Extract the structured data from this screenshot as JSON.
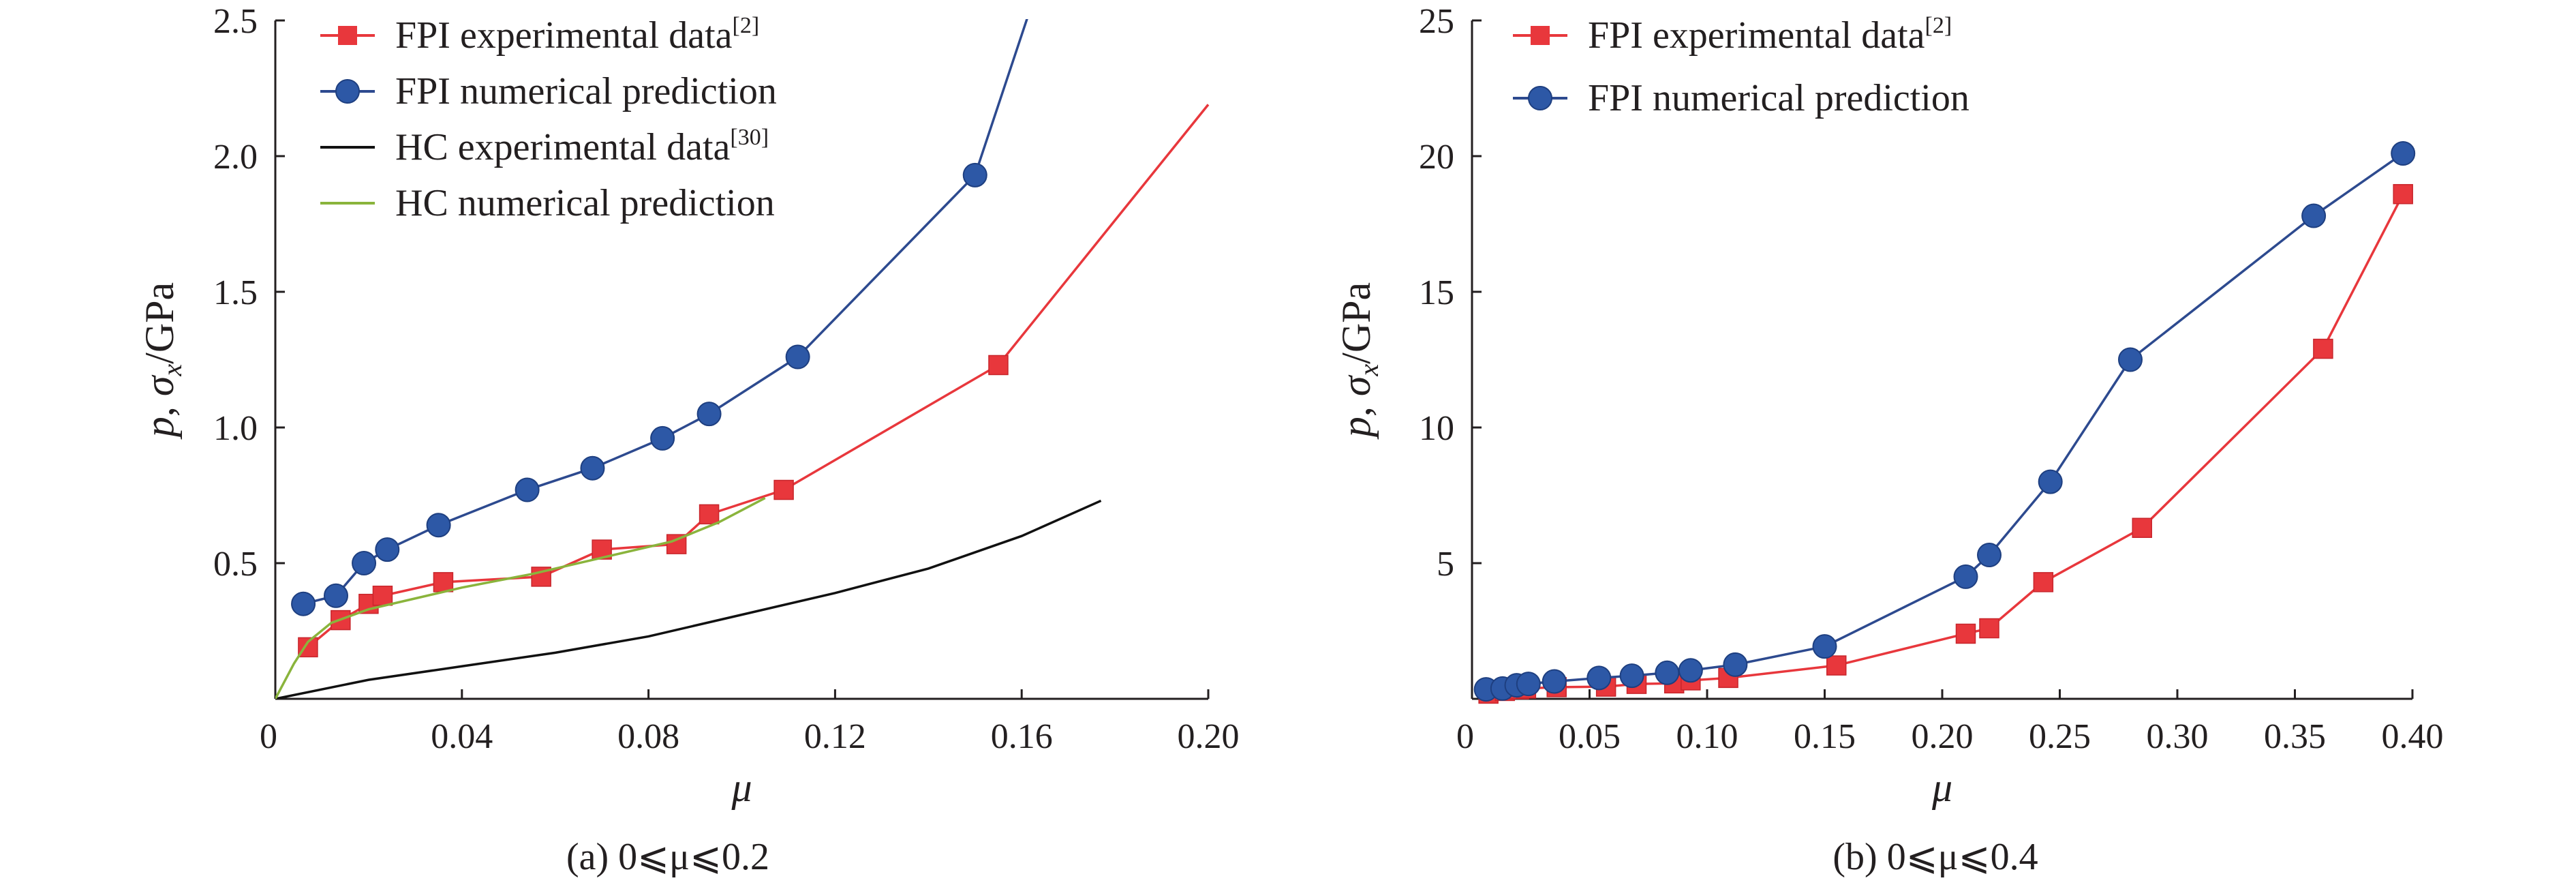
{
  "chart_data": [
    {
      "type": "line",
      "ylabel_parts": [
        "p",
        ", ",
        "σ",
        "x",
        "/GPa"
      ],
      "xlabel": "μ",
      "caption": "(a) 0⩽μ⩽0.2",
      "xlim": [
        0,
        0.2
      ],
      "ylim": [
        0,
        2.5
      ],
      "xticks": [
        "0",
        "0.04",
        "0.08",
        "0.12",
        "0.16",
        "0.20"
      ],
      "xtick_values": [
        0,
        0.04,
        0.08,
        0.12,
        0.16,
        0.2
      ],
      "yticks": [
        "0.5",
        "1.0",
        "1.5",
        "2.0",
        "2.5"
      ],
      "ytick_values": [
        0.5,
        1.0,
        1.5,
        2.0,
        2.5
      ],
      "legend_position": "top-left",
      "series": [
        {
          "legend": "FPI experimental data",
          "legend_sup": "[2]",
          "marker": "square",
          "color": "#e8373c",
          "line_color": "#e8373c",
          "x": [
            0.007,
            0.014,
            0.02,
            0.023,
            0.036,
            0.057,
            0.07,
            0.086,
            0.093,
            0.109,
            0.155,
            0.2
          ],
          "y": [
            0.19,
            0.29,
            0.35,
            0.38,
            0.43,
            0.45,
            0.55,
            0.57,
            0.68,
            0.77,
            1.23,
            2.19
          ],
          "marker_count": 11
        },
        {
          "legend": "FPI numerical prediction",
          "legend_sup": "",
          "marker": "circle",
          "color": "#2d58a6",
          "line_color": "#2d4a8f",
          "x": [
            0.006,
            0.013,
            0.019,
            0.024,
            0.035,
            0.054,
            0.068,
            0.083,
            0.093,
            0.112,
            0.15,
            0.162
          ],
          "y": [
            0.35,
            0.38,
            0.5,
            0.55,
            0.64,
            0.77,
            0.85,
            0.96,
            1.05,
            1.26,
            1.93,
            2.55
          ],
          "marker_count": 11
        },
        {
          "legend": "HC experimental data",
          "legend_sup": "[30]",
          "marker": "none",
          "color": "#111111",
          "line_color": "#111111",
          "x": [
            0,
            0.02,
            0.04,
            0.06,
            0.08,
            0.1,
            0.12,
            0.14,
            0.16,
            0.177
          ],
          "y": [
            0,
            0.07,
            0.12,
            0.17,
            0.23,
            0.31,
            0.39,
            0.48,
            0.6,
            0.73
          ]
        },
        {
          "legend": "HC numerical prediction",
          "legend_sup": "",
          "marker": "none",
          "color": "#8ab43c",
          "line_color": "#8ab43c",
          "x": [
            0,
            0.004,
            0.007,
            0.012,
            0.02,
            0.03,
            0.04,
            0.055,
            0.07,
            0.085,
            0.095,
            0.105
          ],
          "y": [
            0.0,
            0.13,
            0.21,
            0.28,
            0.33,
            0.37,
            0.41,
            0.46,
            0.52,
            0.58,
            0.65,
            0.74
          ]
        }
      ]
    },
    {
      "type": "line",
      "ylabel_parts": [
        "p",
        ", ",
        "σ",
        "x",
        "/GPa"
      ],
      "xlabel": "μ",
      "caption": "(b) 0⩽μ⩽0.4",
      "xlim": [
        0,
        0.4
      ],
      "ylim": [
        0,
        25
      ],
      "xticks": [
        "0",
        "0.05",
        "0.10",
        "0.15",
        "0.20",
        "0.25",
        "0.30",
        "0.35",
        "0.40"
      ],
      "xtick_values": [
        0,
        0.05,
        0.1,
        0.15,
        0.2,
        0.25,
        0.3,
        0.35,
        0.4
      ],
      "yticks": [
        "5",
        "10",
        "15",
        "20",
        "25"
      ],
      "ytick_values": [
        5,
        10,
        15,
        20,
        25
      ],
      "legend_position": "top-left",
      "series": [
        {
          "legend": "FPI experimental data",
          "legend_sup": "[2]",
          "marker": "square",
          "color": "#e8373c",
          "line_color": "#e8373c",
          "x": [
            0.007,
            0.014,
            0.02,
            0.023,
            0.036,
            0.057,
            0.07,
            0.086,
            0.093,
            0.109,
            0.155,
            0.21,
            0.22,
            0.243,
            0.285,
            0.362,
            0.396
          ],
          "y": [
            0.19,
            0.29,
            0.35,
            0.38,
            0.43,
            0.45,
            0.55,
            0.57,
            0.68,
            0.77,
            1.23,
            2.4,
            2.6,
            4.3,
            6.3,
            12.9,
            18.6
          ]
        },
        {
          "legend": "FPI numerical prediction",
          "legend_sup": "",
          "marker": "circle",
          "color": "#2d58a6",
          "line_color": "#2d4a8f",
          "x": [
            0.006,
            0.013,
            0.019,
            0.024,
            0.035,
            0.054,
            0.068,
            0.083,
            0.093,
            0.112,
            0.15,
            0.21,
            0.22,
            0.246,
            0.28,
            0.358,
            0.396
          ],
          "y": [
            0.35,
            0.38,
            0.5,
            0.55,
            0.64,
            0.77,
            0.85,
            0.96,
            1.05,
            1.26,
            1.93,
            4.5,
            5.3,
            8.0,
            12.5,
            17.8,
            20.1
          ]
        }
      ]
    }
  ]
}
